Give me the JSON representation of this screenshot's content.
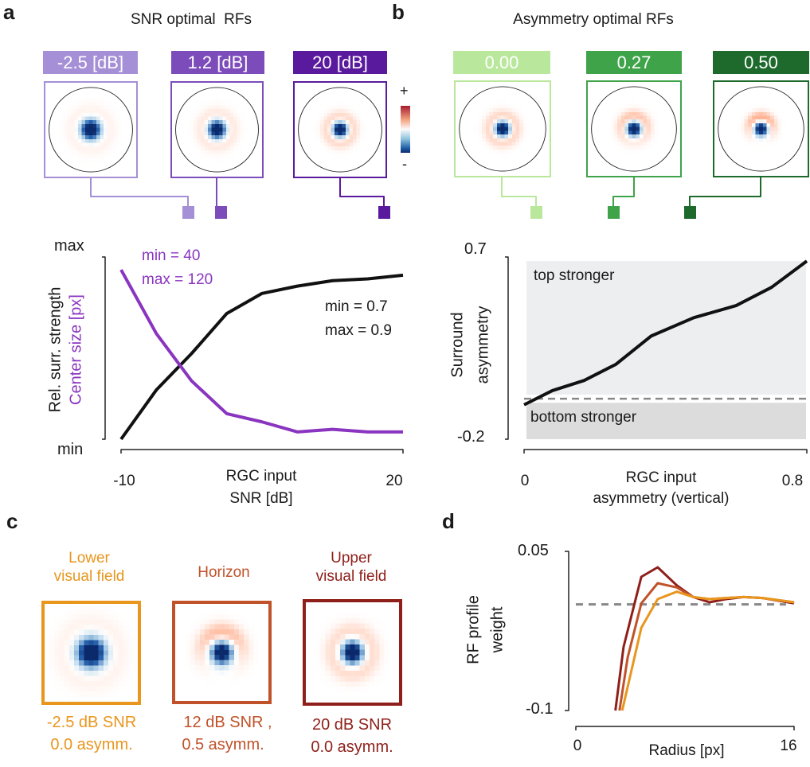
{
  "panels": {
    "a": {
      "letter": "a",
      "title": "SNR optimal  RFs",
      "rfs": [
        {
          "label": "-2.5 [dB]",
          "color": "#a58fd6"
        },
        {
          "label": "1.2 [dB]",
          "color": "#7c4cbb"
        },
        {
          "label": "20 [dB]",
          "color": "#5a1a9e"
        }
      ],
      "colorbar": {
        "plus": "+",
        "minus": "-"
      }
    },
    "b": {
      "letter": "b",
      "title": "Asymmetry optimal RFs",
      "rfs": [
        {
          "label": "0.00",
          "color": "#b9e89c"
        },
        {
          "label": "0.27",
          "color": "#3fa34a"
        },
        {
          "label": "0.50",
          "color": "#1d6a2c"
        }
      ]
    },
    "c": {
      "letter": "c",
      "items": [
        {
          "title": "Lower\nvisual field",
          "caption1": "-2.5 dB SNR",
          "caption2": "0.0 asymm.",
          "color": "#e8961e"
        },
        {
          "title": "Horizon",
          "caption1": "12 dB SNR ,",
          "caption2": "0.5 asymm.",
          "color": "#c0522a"
        },
        {
          "title": "Upper\nvisual field",
          "caption1": "20 dB SNR",
          "caption2": "0.0 asymm.",
          "color": "#8f1f1a"
        }
      ]
    },
    "d": {
      "letter": "d"
    }
  },
  "chart_data": [
    {
      "id": "a",
      "type": "line",
      "xlabel": [
        "RGC input",
        "SNR [dB]"
      ],
      "ylabel": [
        "Rel. surr. strength",
        "Center size [px]"
      ],
      "xticks": [
        "-10",
        "20"
      ],
      "xlim": [
        -10,
        20
      ],
      "yticks": [
        "min",
        "max"
      ],
      "ylim": [
        0,
        1
      ],
      "x": [
        -10,
        -6.25,
        -2.5,
        1.25,
        5,
        8.75,
        12.5,
        16.25,
        20
      ],
      "series": [
        {
          "name": "Rel. surr. strength",
          "color": "#111111",
          "values": [
            0,
            0.27,
            0.47,
            0.69,
            0.8,
            0.84,
            0.87,
            0.88,
            0.9
          ]
        },
        {
          "name": "Center size [px]",
          "color": "#8a35c0",
          "values": [
            0.93,
            0.58,
            0.32,
            0.14,
            0.095,
            0.04,
            0.054,
            0.04,
            0.04
          ]
        }
      ],
      "annotations": [
        {
          "text": "min = 40",
          "series": "Center size [px]"
        },
        {
          "text": "max = 120",
          "series": "Center size [px]"
        },
        {
          "text": "min = 0.7",
          "series": "Rel. surr. strength"
        },
        {
          "text": "max = 0.9",
          "series": "Rel. surr. strength"
        }
      ],
      "grid": false
    },
    {
      "id": "b",
      "type": "line",
      "xlabel": [
        "RGC input",
        "asymmetry (vertical)"
      ],
      "ylabel": [
        "Surround",
        "asymmetry"
      ],
      "xticks": [
        "0",
        "0.8"
      ],
      "xlim": [
        0,
        0.8
      ],
      "yticks": [
        "-0.2",
        "0.7"
      ],
      "ylim": [
        -0.2,
        0.7
      ],
      "x": [
        0,
        0.08,
        0.17,
        0.26,
        0.36,
        0.48,
        0.6,
        0.7,
        0.8
      ],
      "series": [
        {
          "color": "#111111",
          "values": [
            -0.03,
            0.04,
            0.09,
            0.17,
            0.31,
            0.4,
            0.46,
            0.55,
            0.68
          ]
        }
      ],
      "reference_line": {
        "y": 0,
        "style": "dashed",
        "color": "#888888"
      },
      "regions": [
        {
          "label": "top stronger",
          "y": [
            0.02,
            0.68
          ],
          "color": "#eceef0"
        },
        {
          "label": "bottom stronger",
          "y": [
            -0.2,
            -0.02
          ],
          "color": "#dcdcdc"
        }
      ],
      "grid": false
    },
    {
      "id": "d",
      "type": "line",
      "xlabel": "Radius [px]",
      "ylabel": [
        "RF profile",
        "weight"
      ],
      "xticks": [
        "0",
        "16"
      ],
      "xlim": [
        0,
        16
      ],
      "yticks": [
        "-0.1",
        "0.05"
      ],
      "ylim": [
        -0.1,
        0.05
      ],
      "series": [
        {
          "color": "#8f1f1a",
          "x": [
            2.9,
            3.5,
            4.8,
            6,
            7.4,
            8.6,
            9.8,
            11,
            12.3,
            13.7,
            16
          ],
          "values": [
            -0.1,
            -0.04,
            0.026,
            0.035,
            0.018,
            0.007,
            0.002,
            0.005,
            0.007,
            0.006,
            0.001
          ]
        },
        {
          "color": "#c0522a",
          "x": [
            3.2,
            3.8,
            4.8,
            6,
            7.4,
            8.6,
            9.8,
            11,
            12.3,
            13.7,
            16
          ],
          "values": [
            -0.1,
            -0.05,
            0.001,
            0.02,
            0.016,
            0.007,
            0.005,
            0.006,
            0.007,
            0.006,
            0.002
          ]
        },
        {
          "color": "#e8961e",
          "x": [
            3.4,
            4.8,
            6,
            7.4,
            8.6,
            9.8,
            11,
            12.3,
            13.7,
            16
          ],
          "values": [
            -0.1,
            -0.022,
            0.005,
            0.012,
            0.007,
            0.005,
            0.006,
            0.007,
            0.006,
            0.002
          ]
        }
      ],
      "reference_line": {
        "y": 0,
        "style": "dashed",
        "color": "#888888"
      },
      "grid": false
    }
  ]
}
